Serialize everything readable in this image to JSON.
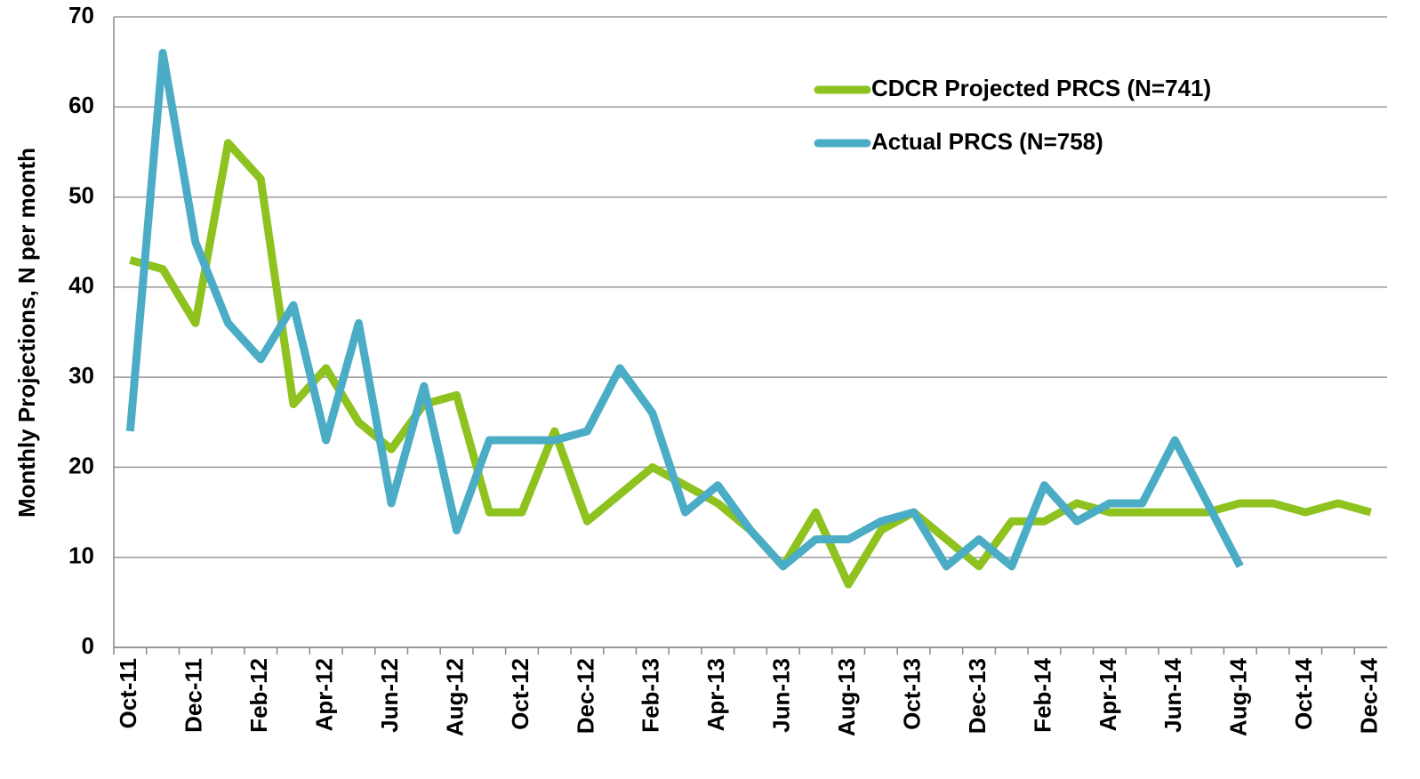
{
  "chart_data": {
    "type": "line",
    "ylabel": "Monthly Projections, N per month",
    "categories": [
      "Oct-11",
      null,
      "Dec-11",
      null,
      "Feb-12",
      null,
      "Apr-12",
      null,
      "Jun-12",
      null,
      "Aug-12",
      null,
      "Oct-12",
      null,
      "Dec-12",
      null,
      "Feb-13",
      null,
      "Apr-13",
      null,
      "Jun-13",
      null,
      "Aug-13",
      null,
      "Oct-13",
      null,
      "Dec-13",
      null,
      "Feb-14",
      null,
      "Apr-14",
      null,
      "Jun-14",
      null,
      "Aug-14",
      null,
      "Oct-14",
      null,
      "Dec-14"
    ],
    "series": [
      {
        "name": "CDCR Projected PRCS (N=741)",
        "color": "#8dc21f",
        "values": [
          43,
          42,
          36,
          56,
          52,
          27,
          31,
          25,
          22,
          27,
          28,
          15,
          15,
          24,
          14,
          17,
          20,
          18,
          16,
          13,
          9,
          15,
          7,
          13,
          15,
          12,
          9,
          14,
          14,
          16,
          15,
          15,
          15,
          15,
          16,
          16,
          15,
          16,
          15
        ]
      },
      {
        "name": "Actual PRCS (N=758)",
        "color": "#4bacc6",
        "values": [
          24,
          66,
          45,
          36,
          32,
          38,
          23,
          36,
          16,
          29,
          13,
          23,
          23,
          23,
          24,
          31,
          26,
          15,
          18,
          13,
          9,
          12,
          12,
          14,
          15,
          9,
          12,
          9,
          18,
          14,
          16,
          16,
          23,
          16,
          9,
          null,
          null,
          null,
          null
        ]
      }
    ],
    "ylim": [
      0,
      70
    ],
    "yticks": [
      0,
      10,
      20,
      30,
      40,
      50,
      60,
      70
    ],
    "grid": true,
    "legend": "upper right"
  }
}
